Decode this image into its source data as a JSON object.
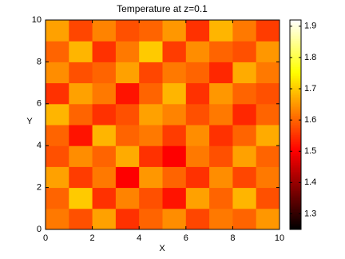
{
  "chart_data": {
    "type": "heatmap",
    "title": "Temperature at z=0.1",
    "xlabel": "X",
    "ylabel": "Y",
    "colormap": "hot",
    "x": [
      0.5,
      1.5,
      2.5,
      3.5,
      4.5,
      5.5,
      6.5,
      7.5,
      8.5,
      9.5
    ],
    "y": [
      0.5,
      1.5,
      2.5,
      3.5,
      4.5,
      5.5,
      6.5,
      7.5,
      8.5,
      9.5
    ],
    "values": [
      [
        1.62,
        1.58,
        1.66,
        1.55,
        1.6,
        1.64,
        1.57,
        1.62,
        1.6,
        1.65
      ],
      [
        1.6,
        1.7,
        1.55,
        1.63,
        1.58,
        1.52,
        1.66,
        1.6,
        1.68,
        1.58
      ],
      [
        1.66,
        1.56,
        1.62,
        1.5,
        1.65,
        1.6,
        1.55,
        1.64,
        1.57,
        1.62
      ],
      [
        1.58,
        1.64,
        1.6,
        1.67,
        1.55,
        1.5,
        1.62,
        1.58,
        1.66,
        1.6
      ],
      [
        1.6,
        1.52,
        1.68,
        1.6,
        1.62,
        1.56,
        1.64,
        1.55,
        1.6,
        1.67
      ],
      [
        1.68,
        1.6,
        1.55,
        1.58,
        1.66,
        1.63,
        1.58,
        1.62,
        1.54,
        1.6
      ],
      [
        1.55,
        1.66,
        1.62,
        1.52,
        1.6,
        1.68,
        1.55,
        1.65,
        1.6,
        1.58
      ],
      [
        1.64,
        1.58,
        1.6,
        1.66,
        1.57,
        1.62,
        1.6,
        1.54,
        1.67,
        1.62
      ],
      [
        1.6,
        1.68,
        1.55,
        1.62,
        1.7,
        1.56,
        1.64,
        1.6,
        1.58,
        1.65
      ],
      [
        1.66,
        1.57,
        1.63,
        1.58,
        1.6,
        1.65,
        1.55,
        1.68,
        1.62,
        1.56
      ]
    ],
    "xlim": [
      0,
      10
    ],
    "ylim": [
      0,
      10
    ],
    "xticks": [
      0,
      2,
      4,
      6,
      8,
      10
    ],
    "yticks": [
      0,
      2,
      4,
      6,
      8,
      10
    ],
    "clim": [
      1.25,
      1.92
    ],
    "colorbar_ticks": [
      1.3,
      1.4,
      1.5,
      1.6,
      1.7,
      1.8,
      1.9
    ]
  }
}
